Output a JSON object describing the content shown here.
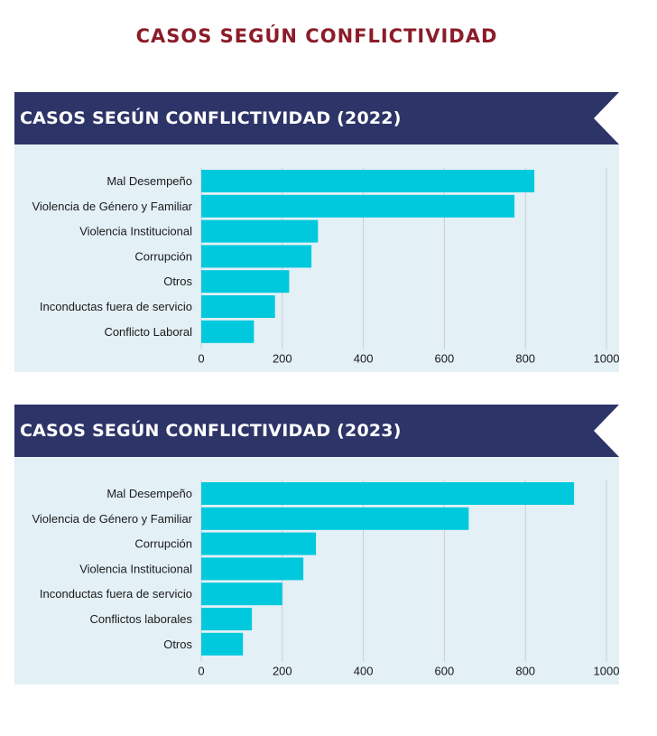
{
  "page_title": "CASOS SEGÚN CONFLICTIVIDAD",
  "colors": {
    "title": "#8b1c2a",
    "banner": "#2d3468",
    "plot_bg": "#e3f0f6",
    "bar": "#00c9dd",
    "grid": "#c9cfd4",
    "label": "#1a1a1a"
  },
  "chart_data": [
    {
      "type": "bar",
      "orientation": "horizontal",
      "title": "CASOS SEGÚN CONFLICTIVIDAD (2022)",
      "categories": [
        "Mal Desempeño",
        "Violencia de Género y Familiar",
        "Violencia Institucional",
        "Corrupción",
        "Otros",
        "Inconductas fuera de servicio",
        "Conflicto Laboral"
      ],
      "values": [
        822,
        773,
        288,
        272,
        217,
        182,
        130
      ],
      "xlim": [
        0,
        1000
      ],
      "ticks": [
        "0",
        "200",
        "400",
        "600",
        "800",
        "1000"
      ],
      "grid": true
    },
    {
      "type": "bar",
      "orientation": "horizontal",
      "title": "CASOS SEGÚN CONFLICTIVIDAD (2023)",
      "categories": [
        "Mal Desempeño",
        "Violencia de Género y Familiar",
        "Corrupción",
        "Violencia Institucional",
        "Inconductas fuera de servicio",
        "Conflictos laborales",
        "Otros"
      ],
      "values": [
        920,
        660,
        283,
        252,
        200,
        125,
        103
      ],
      "xlim": [
        0,
        1000
      ],
      "ticks": [
        "0",
        "200",
        "400",
        "600",
        "800",
        "1000"
      ],
      "grid": true
    }
  ]
}
